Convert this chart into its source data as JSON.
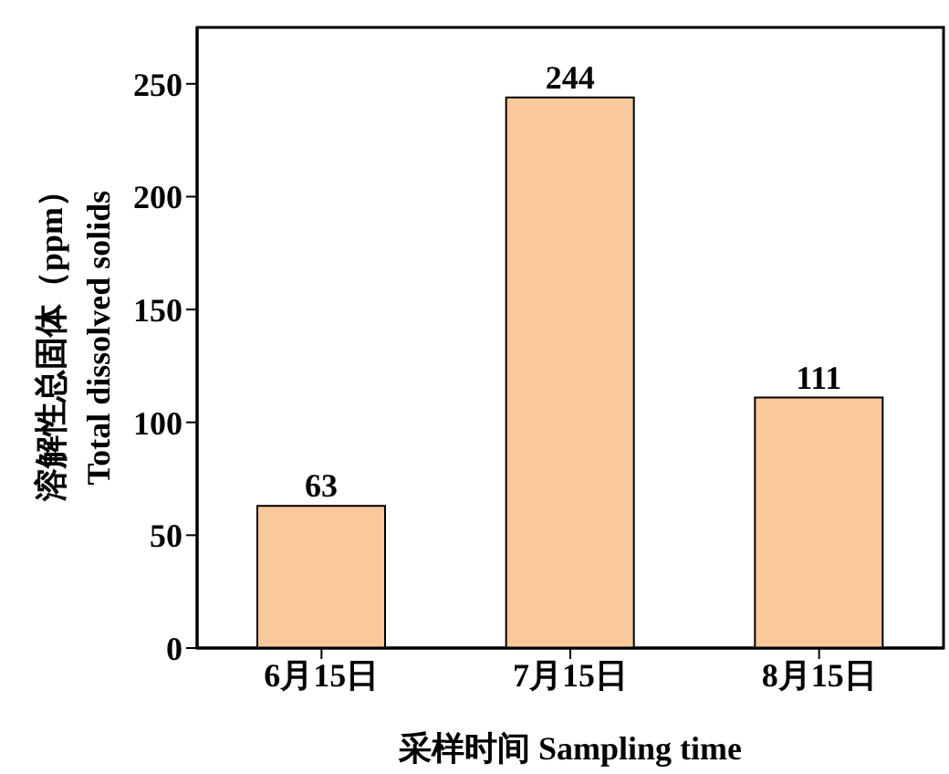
{
  "chart_data": {
    "type": "bar",
    "xlabel": "采样时间 Sampling time",
    "ylabel": "溶解性总固体（ppm）\nTotal dissolved solids",
    "categories": [
      "6月15日",
      "7月15日",
      "8月15日"
    ],
    "values": [
      63,
      244,
      111
    ],
    "color": "#f9c89b",
    "ylim": [
      0,
      275
    ],
    "yticks": [
      0,
      50,
      100,
      150,
      200,
      250
    ],
    "data_labels": true,
    "grid": false,
    "legend": false
  }
}
